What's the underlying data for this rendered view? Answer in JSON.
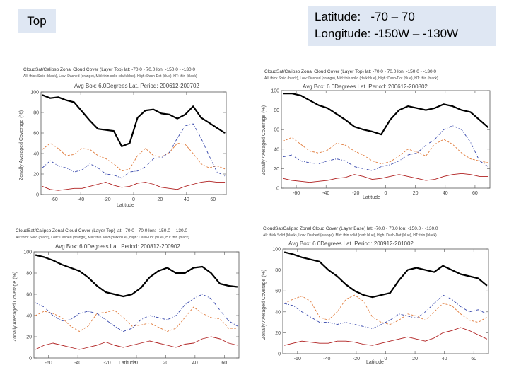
{
  "header": {
    "top_label": "Top",
    "latitude_text": "Latitude:   -70 – 70",
    "longitude_text": "Longitude: -150W – -130W"
  },
  "colors": {
    "total": "#000000",
    "low": "#e07a3a",
    "middle": "#3344aa",
    "high": "#b02020",
    "axis": "#555555"
  },
  "chart_data": [
    {
      "type": "line",
      "title": "CloudSat/Calipso Zonal Cloud Cover (Layer Top) lat: -70.0 - 70.0  lon: -150.0 - -130.0",
      "legend_text": "All: thick Solid (black), Low: Dashed (orange), Mid: thin solid (dark blue), High: Dash-Dot (blue), HT: thin (black)",
      "subtitle": "Avg Box: 6.0Degrees Lat. Period: 200612-200702",
      "xlabel": "Latitude",
      "ylabel": "Zonally Averaged Coverage (%)",
      "xlim": [
        -70,
        70
      ],
      "ylim": [
        0,
        100
      ],
      "xticks": [
        -60,
        -40,
        -20,
        0,
        20,
        40,
        60
      ],
      "yticks": [
        0,
        20,
        40,
        60,
        80,
        100
      ],
      "x": [
        -69,
        -63,
        -57,
        -51,
        -45,
        -39,
        -33,
        -27,
        -21,
        -15,
        -9,
        -3,
        3,
        9,
        15,
        21,
        27,
        33,
        39,
        45,
        51,
        57,
        63,
        69
      ],
      "series": [
        {
          "name": "Total",
          "values": [
            97,
            94,
            95,
            92,
            90,
            81,
            72,
            64,
            63,
            62,
            47,
            50,
            75,
            82,
            83,
            79,
            78,
            74,
            78,
            86,
            75,
            70,
            65,
            60
          ]
        },
        {
          "name": "Low",
          "values": [
            44,
            50,
            45,
            38,
            39,
            45,
            44,
            38,
            35,
            30,
            23,
            25,
            38,
            45,
            38,
            37,
            41,
            50,
            49,
            40,
            30,
            26,
            28,
            25
          ]
        },
        {
          "name": "Middle",
          "values": [
            26,
            33,
            28,
            26,
            22,
            24,
            30,
            26,
            20,
            19,
            16,
            22,
            23,
            27,
            35,
            36,
            41,
            55,
            67,
            69,
            55,
            38,
            22,
            18
          ]
        },
        {
          "name": "High",
          "values": [
            8,
            5,
            4,
            5,
            6,
            6,
            8,
            10,
            12,
            9,
            7,
            8,
            11,
            12,
            10,
            7,
            6,
            5,
            8,
            10,
            12,
            13,
            12,
            12
          ]
        }
      ]
    },
    {
      "type": "line",
      "title": "CloudSat/Calipso Zonal Cloud Cover (Layer Top) lat: -70.0 - 70.0  lon: -150.0 - -130.0",
      "legend_text": "All: thick Solid (black), Low: Dashed (orange), Mid: thin solid (dark blue), High: Dash-Dot (blue), HT: thin (black)",
      "subtitle": "Avg Box: 6.0Degrees Lat. Period: 200612-200802",
      "xlabel": "Latitude",
      "ylabel": "Zonally Averaged Coverage (%)",
      "xlim": [
        -70,
        70
      ],
      "ylim": [
        0,
        100
      ],
      "xticks": [
        -60,
        -40,
        -20,
        0,
        20,
        40,
        60
      ],
      "yticks": [
        0,
        20,
        40,
        60,
        80,
        100
      ],
      "x": [
        -69,
        -63,
        -57,
        -51,
        -45,
        -39,
        -33,
        -27,
        -21,
        -15,
        -9,
        -3,
        3,
        9,
        15,
        21,
        27,
        33,
        39,
        45,
        51,
        57,
        63,
        69
      ],
      "series": [
        {
          "name": "Total",
          "values": [
            97,
            97,
            95,
            90,
            85,
            82,
            76,
            70,
            63,
            60,
            58,
            55,
            70,
            80,
            84,
            82,
            80,
            82,
            86,
            84,
            80,
            78,
            70,
            62
          ]
        },
        {
          "name": "Low",
          "values": [
            48,
            52,
            45,
            38,
            36,
            39,
            46,
            44,
            38,
            34,
            28,
            25,
            27,
            33,
            40,
            37,
            33,
            45,
            50,
            45,
            36,
            30,
            28,
            26
          ]
        },
        {
          "name": "Middle",
          "values": [
            32,
            34,
            28,
            26,
            25,
            28,
            30,
            28,
            22,
            20,
            18,
            22,
            24,
            28,
            34,
            36,
            44,
            50,
            60,
            64,
            60,
            47,
            28,
            22
          ]
        },
        {
          "name": "High",
          "values": [
            10,
            8,
            7,
            6,
            7,
            8,
            10,
            11,
            14,
            12,
            9,
            10,
            12,
            14,
            12,
            10,
            8,
            9,
            12,
            14,
            15,
            14,
            12,
            12
          ]
        }
      ]
    },
    {
      "type": "line",
      "title": "CloudSat/Calipso Zonal Cloud Cover (Layer Top) lat: -70.0 - 70.0  lon: -150.0 - -130.0",
      "legend_text": "All: thick Solid (black), Low: Dashed (orange), Mid: thin solid (dark blue), High: Dash-Dot (blue), HT: thin (black)",
      "subtitle": "Avg Box: 6.0Degrees Lat. Period: 200812-200902",
      "xlabel": "Latitude",
      "ylabel": "Zonally Averaged Coverage (%)",
      "xlim": [
        -70,
        70
      ],
      "ylim": [
        0,
        100
      ],
      "xticks": [
        -60,
        -40,
        -20,
        0,
        20,
        40,
        60
      ],
      "yticks": [
        0,
        20,
        40,
        60,
        80,
        100
      ],
      "x": [
        -69,
        -63,
        -57,
        -51,
        -45,
        -39,
        -33,
        -27,
        -21,
        -15,
        -9,
        -3,
        3,
        9,
        15,
        21,
        27,
        33,
        39,
        45,
        51,
        57,
        63,
        69
      ],
      "series": [
        {
          "name": "Total",
          "values": [
            97,
            95,
            92,
            88,
            85,
            82,
            76,
            68,
            62,
            60,
            58,
            60,
            66,
            76,
            82,
            85,
            80,
            80,
            85,
            86,
            80,
            70,
            68,
            67
          ]
        },
        {
          "name": "Low",
          "values": [
            40,
            44,
            42,
            38,
            30,
            25,
            30,
            42,
            43,
            45,
            38,
            30,
            31,
            33,
            29,
            25,
            28,
            38,
            48,
            42,
            38,
            37,
            28,
            28
          ]
        },
        {
          "name": "Middle",
          "values": [
            52,
            48,
            40,
            35,
            36,
            42,
            44,
            42,
            36,
            30,
            25,
            28,
            36,
            40,
            38,
            36,
            40,
            50,
            56,
            60,
            56,
            45,
            35,
            30
          ]
        },
        {
          "name": "High",
          "values": [
            8,
            12,
            14,
            12,
            10,
            8,
            10,
            12,
            15,
            12,
            10,
            12,
            14,
            16,
            14,
            12,
            10,
            13,
            14,
            18,
            20,
            18,
            14,
            12
          ]
        }
      ]
    },
    {
      "type": "line",
      "title": "CloudSat/Calipso Zonal Cloud Cover (Layer Base) lat: -70.0 - 70.0  lon: -150.0 - -130.0",
      "legend_text": "All: thick Solid (black), Low: Dashed (orange), Mid: thin solid (dark blue), High: Dash-Dot (blue), HT: thin (black)",
      "subtitle": "Avg Box: 6.0Degrees Lat. Period: 200912-201002",
      "xlabel": "Latitude",
      "ylabel": "Zonally Averaged Coverage (%)",
      "xlim": [
        -70,
        70
      ],
      "ylim": [
        0,
        100
      ],
      "xticks": [
        -60,
        -40,
        -20,
        0,
        20,
        40,
        60
      ],
      "yticks": [
        0,
        20,
        40,
        60,
        80,
        100
      ],
      "x": [
        -69,
        -63,
        -57,
        -51,
        -45,
        -39,
        -33,
        -27,
        -21,
        -15,
        -9,
        -3,
        3,
        9,
        15,
        21,
        27,
        33,
        39,
        45,
        51,
        57,
        63,
        69
      ],
      "series": [
        {
          "name": "Total",
          "values": [
            97,
            95,
            92,
            90,
            88,
            80,
            74,
            66,
            60,
            56,
            54,
            56,
            58,
            70,
            80,
            82,
            80,
            78,
            84,
            80,
            76,
            74,
            72,
            65
          ]
        },
        {
          "name": "Low",
          "values": [
            48,
            52,
            55,
            50,
            35,
            32,
            40,
            52,
            56,
            50,
            35,
            30,
            28,
            32,
            38,
            36,
            32,
            40,
            48,
            46,
            38,
            32,
            30,
            35
          ]
        },
        {
          "name": "Middle",
          "values": [
            48,
            46,
            40,
            35,
            30,
            30,
            28,
            30,
            28,
            26,
            24,
            28,
            32,
            38,
            36,
            34,
            40,
            48,
            56,
            52,
            45,
            40,
            42,
            38
          ]
        },
        {
          "name": "High",
          "values": [
            8,
            10,
            12,
            11,
            10,
            10,
            12,
            12,
            11,
            9,
            8,
            10,
            12,
            14,
            16,
            14,
            12,
            15,
            20,
            22,
            25,
            22,
            18,
            14
          ]
        }
      ]
    }
  ]
}
